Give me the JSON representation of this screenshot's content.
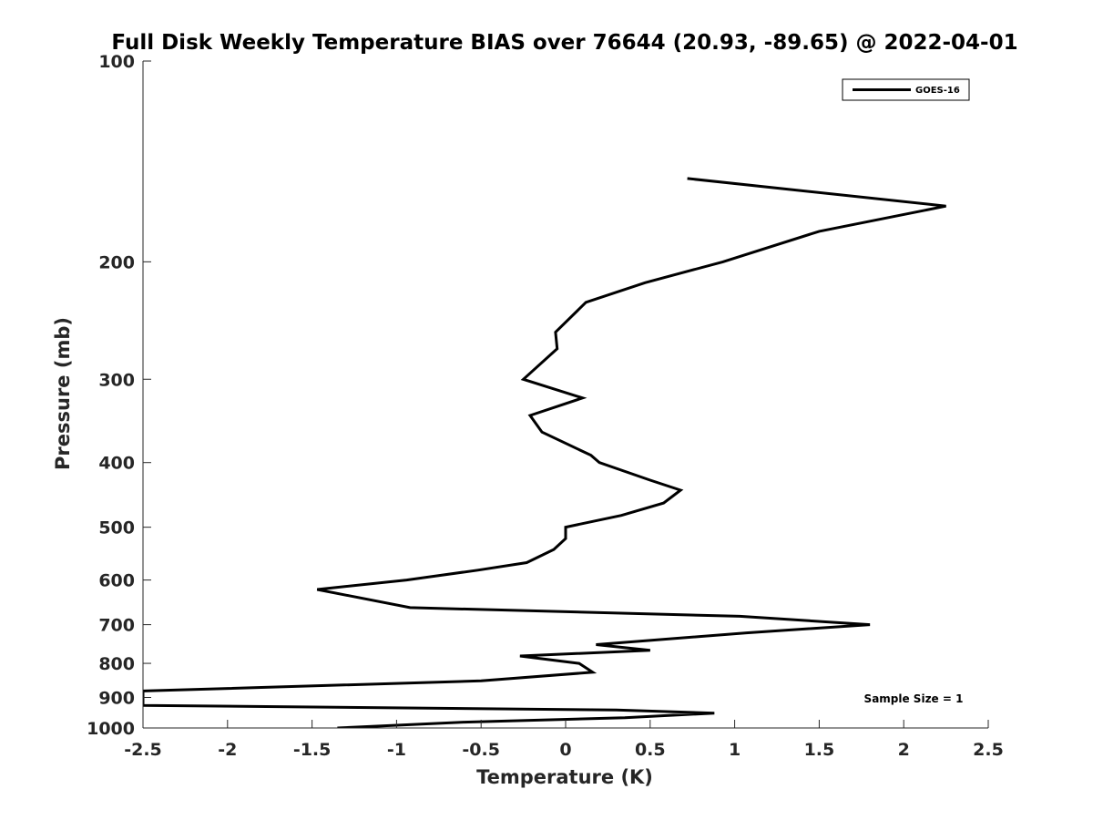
{
  "chart_data": {
    "type": "line",
    "title": "Full Disk Weekly Temperature BIAS over 76644 (20.93, -89.65) @ 2022-04-01",
    "xlabel": "Temperature (K)",
    "ylabel": "Pressure (mb)",
    "xlim": [
      -2.5,
      2.5
    ],
    "ylim": [
      100,
      1000
    ],
    "y_scale": "log",
    "y_reversed": true,
    "x_ticks": [
      -2.5,
      -2,
      -1.5,
      -1,
      -0.5,
      0,
      0.5,
      1,
      1.5,
      2,
      2.5
    ],
    "x_tick_labels": [
      "-2.5",
      "-2",
      "-1.5",
      "-1",
      "-0.5",
      "0",
      "0.5",
      "1",
      "1.5",
      "2",
      "2.5"
    ],
    "y_ticks": [
      100,
      200,
      300,
      400,
      500,
      600,
      700,
      800,
      900,
      1000
    ],
    "y_tick_labels": [
      "100",
      "200",
      "300",
      "400",
      "500",
      "600",
      "700",
      "800",
      "900",
      "1000"
    ],
    "grid": false,
    "legend_position": "top-right",
    "annotation": "Sample Size = 1",
    "series": [
      {
        "name": "GOES-16",
        "color": "#000000",
        "points": [
          {
            "x": 0.72,
            "p": 150
          },
          {
            "x": 2.25,
            "p": 165
          },
          {
            "x": 1.5,
            "p": 180
          },
          {
            "x": 0.93,
            "p": 200
          },
          {
            "x": 0.47,
            "p": 215
          },
          {
            "x": 0.12,
            "p": 230
          },
          {
            "x": -0.06,
            "p": 255
          },
          {
            "x": -0.05,
            "p": 270
          },
          {
            "x": -0.25,
            "p": 300
          },
          {
            "x": 0.1,
            "p": 320
          },
          {
            "x": -0.21,
            "p": 340
          },
          {
            "x": -0.14,
            "p": 360
          },
          {
            "x": 0.15,
            "p": 390
          },
          {
            "x": 0.2,
            "p": 400
          },
          {
            "x": 0.5,
            "p": 425
          },
          {
            "x": 0.68,
            "p": 440
          },
          {
            "x": 0.58,
            "p": 460
          },
          {
            "x": 0.33,
            "p": 480
          },
          {
            "x": 0.0,
            "p": 500
          },
          {
            "x": 0.0,
            "p": 520
          },
          {
            "x": -0.07,
            "p": 540
          },
          {
            "x": -0.23,
            "p": 565
          },
          {
            "x": -0.52,
            "p": 580
          },
          {
            "x": -0.94,
            "p": 600
          },
          {
            "x": -1.47,
            "p": 620
          },
          {
            "x": -0.92,
            "p": 660
          },
          {
            "x": 1.03,
            "p": 680
          },
          {
            "x": 1.8,
            "p": 700
          },
          {
            "x": 1.07,
            "p": 720
          },
          {
            "x": 0.18,
            "p": 750
          },
          {
            "x": 0.5,
            "p": 765
          },
          {
            "x": -0.27,
            "p": 780
          },
          {
            "x": 0.08,
            "p": 800
          },
          {
            "x": 0.16,
            "p": 825
          },
          {
            "x": -0.5,
            "p": 850
          },
          {
            "x": -2.5,
            "p": 880
          },
          {
            "x": -2.5,
            "p": 925
          },
          {
            "x": 0.3,
            "p": 940
          },
          {
            "x": 0.88,
            "p": 950
          },
          {
            "x": 0.35,
            "p": 965
          },
          {
            "x": -0.6,
            "p": 980
          },
          {
            "x": -1.35,
            "p": 1000
          }
        ]
      }
    ]
  }
}
